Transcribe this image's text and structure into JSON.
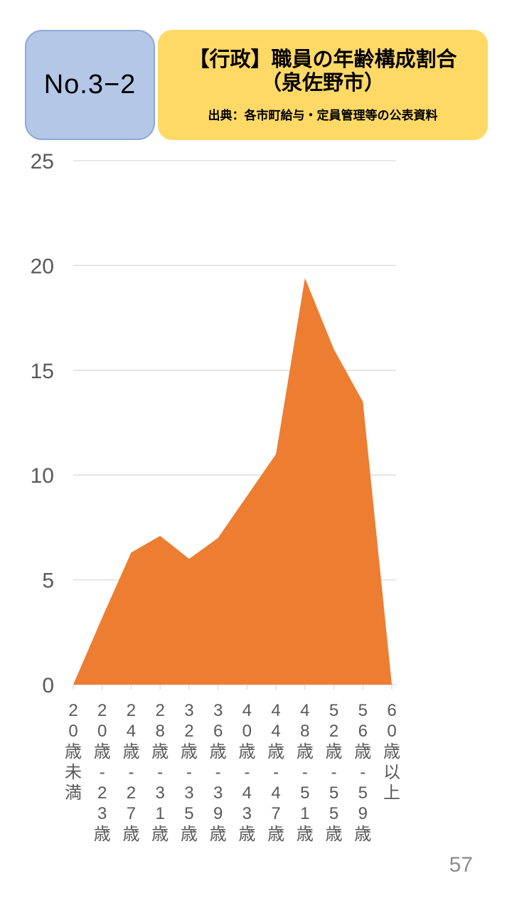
{
  "header": {
    "badge_label": "No.3−2",
    "title_line1": "【行政】職員の年齢構成割合",
    "title_line2": "（泉佐野市）",
    "source": "出典：各市町給与・定員管理等の公表資料"
  },
  "page_number": "57",
  "colors": {
    "badge_bg": "#B4C7E7",
    "badge_border": "#8EA9DB",
    "title_bg": "#FFD966",
    "area_fill": "#ED7D31",
    "gridline": "#D9D9D9",
    "axis_text": "#595959",
    "page_number": "#8C8C8C"
  },
  "chart_data": {
    "type": "area",
    "title": "【行政】職員の年齢構成割合（泉佐野市）",
    "source": "出典：各市町給与・定員管理等の公表資料",
    "xlabel": "",
    "ylabel": "",
    "categories": [
      "20歳未満",
      "20歳-23歳",
      "24歳-27歳",
      "28歳-31歳",
      "32歳-35歳",
      "36歳-39歳",
      "40歳-43歳",
      "44歳-47歳",
      "48歳-51歳",
      "52歳-55歳",
      "56歳-59歳",
      "60歳以上"
    ],
    "values": [
      0,
      3.2,
      6.3,
      7.1,
      6.0,
      7.0,
      9.0,
      11.0,
      19.4,
      16.0,
      13.5,
      0
    ],
    "ylim": [
      0,
      25
    ],
    "yticks": [
      0,
      5,
      10,
      15,
      20,
      25
    ],
    "grid": true,
    "legend_position": "none"
  }
}
